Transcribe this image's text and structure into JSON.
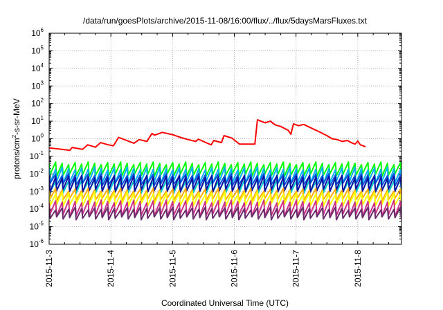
{
  "chart_data": {
    "type": "line",
    "title": "/data/run/goesPlots/archive/2015-11-08/16:00/flux/../flux/5daysMarsFluxes.txt",
    "xlabel": "Coordinated Universal Time (UTC)",
    "ylabel": {
      "prefix": "protons/cm",
      "sup": "2",
      "suffix": "-s-sr-MeV"
    },
    "y_scale": "log",
    "ylim_exponent": [
      -6,
      6
    ],
    "y_tick_labels": [
      {
        "base": "10",
        "exp": "-6"
      },
      {
        "base": "10",
        "exp": "-5"
      },
      {
        "base": "10",
        "exp": "-4"
      },
      {
        "base": "10",
        "exp": "-3"
      },
      {
        "base": "10",
        "exp": "-2"
      },
      {
        "base": "10",
        "exp": "-1"
      },
      {
        "base": "10",
        "exp": "0"
      },
      {
        "base": "10",
        "exp": "1"
      },
      {
        "base": "10",
        "exp": "2"
      },
      {
        "base": "10",
        "exp": "3"
      },
      {
        "base": "10",
        "exp": "4"
      },
      {
        "base": "10",
        "exp": "5"
      },
      {
        "base": "10",
        "exp": "6"
      }
    ],
    "xlim": [
      "2015-11-03",
      "2015-11-08 17:00"
    ],
    "x_tick_labels": [
      "2015-11-3",
      "2015-11-4",
      "2015-11-5",
      "2015-11-6",
      "2015-11-7",
      "2015-11-8"
    ],
    "grid": true,
    "series": [
      {
        "color": "#ff0000",
        "points": [
          [
            "2015-11-03 00:00",
            0.3
          ],
          [
            "2015-11-03 04:00",
            0.26
          ],
          [
            "2015-11-03 08:00",
            0.22
          ],
          [
            "2015-11-03 09:00",
            0.32
          ],
          [
            "2015-11-03 13:00",
            0.25
          ],
          [
            "2015-11-03 15:00",
            0.45
          ],
          [
            "2015-11-03 18:00",
            0.33
          ],
          [
            "2015-11-03 20:00",
            0.6
          ],
          [
            "2015-11-03 23:00",
            0.45
          ],
          [
            "2015-11-04 01:00",
            0.4
          ],
          [
            "2015-11-04 03:00",
            1.2
          ],
          [
            "2015-11-04 09:00",
            0.55
          ],
          [
            "2015-11-04 11:00",
            0.9
          ],
          [
            "2015-11-04 14:00",
            0.7
          ],
          [
            "2015-11-04 16:00",
            2.0
          ],
          [
            "2015-11-04 17:00",
            1.6
          ],
          [
            "2015-11-04 20:00",
            2.3
          ],
          [
            "2015-11-05 00:00",
            1.7
          ],
          [
            "2015-11-05 03:00",
            1.2
          ],
          [
            "2015-11-05 06:00",
            0.9
          ],
          [
            "2015-11-05 09:00",
            0.7
          ],
          [
            "2015-11-05 10:00",
            0.95
          ],
          [
            "2015-11-05 13:00",
            0.6
          ],
          [
            "2015-11-05 15:00",
            0.45
          ],
          [
            "2015-11-05 16:00",
            0.8
          ],
          [
            "2015-11-05 19:00",
            0.6
          ],
          [
            "2015-11-05 20:00",
            1.5
          ],
          [
            "2015-11-05 23:00",
            1.1
          ],
          [
            "2015-11-06 02:00",
            0.5
          ],
          [
            "2015-11-06 08:00",
            0.5
          ],
          [
            "2015-11-06 09:00",
            12.0
          ],
          [
            "2015-11-06 12:00",
            8.0
          ],
          [
            "2015-11-06 14:00",
            10.0
          ],
          [
            "2015-11-06 16:00",
            6.0
          ],
          [
            "2015-11-06 18:00",
            5.0
          ],
          [
            "2015-11-06 21:00",
            3.0
          ],
          [
            "2015-11-06 22:00",
            1.8
          ],
          [
            "2015-11-06 23:00",
            7.0
          ],
          [
            "2015-11-07 01:00",
            5.5
          ],
          [
            "2015-11-07 03:00",
            6.5
          ],
          [
            "2015-11-07 06:00",
            4.0
          ],
          [
            "2015-11-07 09:00",
            2.5
          ],
          [
            "2015-11-07 12:00",
            1.5
          ],
          [
            "2015-11-07 14:00",
            1.0
          ],
          [
            "2015-11-07 16:00",
            0.9
          ],
          [
            "2015-11-07 18:00",
            0.7
          ],
          [
            "2015-11-07 20:00",
            0.8
          ],
          [
            "2015-11-07 22:00",
            0.55
          ],
          [
            "2015-11-07 23:00",
            0.5
          ],
          [
            "2015-11-08 00:00",
            0.75
          ],
          [
            "2015-11-08 01:00",
            0.45
          ],
          [
            "2015-11-08 02:00",
            0.4
          ],
          [
            "2015-11-08 03:00",
            0.35
          ]
        ]
      },
      {
        "color": "#00ff00",
        "points": [
          [
            "2015-11-03 00:00",
            0.02
          ],
          [
            "2015-11-08 17:00",
            0.02
          ]
        ]
      },
      {
        "color": "#00b0f0",
        "points": [
          [
            "2015-11-03 00:00",
            0.009
          ],
          [
            "2015-11-08 17:00",
            0.009
          ]
        ]
      },
      {
        "color": "#0055dd",
        "points": [
          [
            "2015-11-03 00:00",
            0.005
          ],
          [
            "2015-11-08 17:00",
            0.005
          ]
        ]
      },
      {
        "color": "#00cccc",
        "points": [
          [
            "2015-11-03 00:00",
            0.0022
          ],
          [
            "2015-11-08 17:00",
            0.0022
          ]
        ]
      },
      {
        "color": "#1010a0",
        "points": [
          [
            "2015-11-03 00:00",
            0.003
          ],
          [
            "2015-11-08 17:00",
            0.003
          ]
        ]
      },
      {
        "color": "#ffaa00",
        "points": [
          [
            "2015-11-03 00:00",
            0.0007
          ],
          [
            "2015-11-08 17:00",
            0.0007
          ]
        ]
      },
      {
        "color": "#ffff00",
        "points": [
          [
            "2015-11-03 00:00",
            0.0004
          ],
          [
            "2015-11-08 17:00",
            0.0004
          ]
        ]
      },
      {
        "color": "#cc3388",
        "points": [
          [
            "2015-11-03 00:00",
            0.00012
          ],
          [
            "2015-11-08 17:00",
            0.00012
          ]
        ]
      },
      {
        "color": "#6a2c6a",
        "points": [
          [
            "2015-11-03 00:00",
            6e-05
          ],
          [
            "2015-11-08 17:00",
            6e-05
          ]
        ]
      }
    ]
  }
}
